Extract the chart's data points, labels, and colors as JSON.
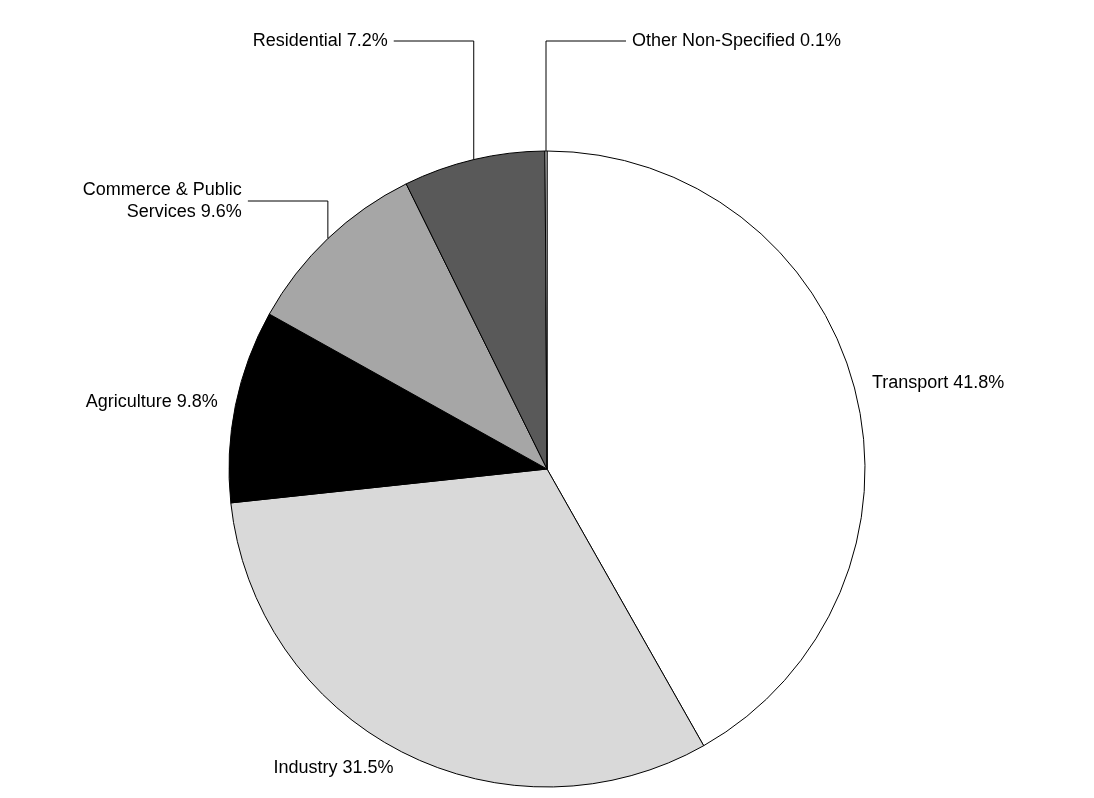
{
  "chart_data": {
    "type": "pie",
    "categories": [
      "Transport",
      "Industry",
      "Agriculture",
      "Commerce & Public Services",
      "Residential",
      "Other Non-Specified"
    ],
    "values": [
      41.8,
      31.5,
      9.8,
      9.6,
      7.2,
      0.1
    ],
    "value_labels": [
      "41.8%",
      "31.5%",
      "9.8%",
      "9.6%",
      "7.2%",
      "0.1%"
    ],
    "colors": [
      "#ffffff",
      "#d9d9d9",
      "#000000",
      "#a6a6a6",
      "#595959",
      "#ffffff"
    ],
    "legend": false
  }
}
